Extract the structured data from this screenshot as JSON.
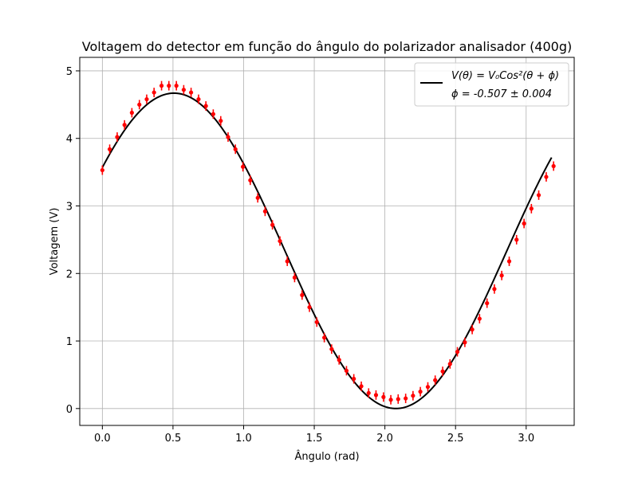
{
  "chart_data": {
    "type": "scatter",
    "title": "Voltagem do detector em função do ângulo do polarizador analisador (400g)",
    "xlabel": "Ângulo (rad)",
    "ylabel": "Voltagem (V)",
    "xlim": [
      -0.16,
      3.34
    ],
    "ylim": [
      -0.25,
      5.2
    ],
    "xticks": [
      0.0,
      0.5,
      1.0,
      1.5,
      2.0,
      2.5,
      3.0
    ],
    "xtick_labels": [
      "0.0",
      "0.5",
      "1.0",
      "1.5",
      "2.0",
      "2.5",
      "3.0"
    ],
    "yticks": [
      0,
      1,
      2,
      3,
      4,
      5
    ],
    "ytick_labels": [
      "0",
      "1",
      "2",
      "3",
      "4",
      "5"
    ],
    "grid": true,
    "legend_position": "top-right",
    "legend": {
      "fit_label": "V(θ) = V₀Cos²(θ + ϕ)",
      "phi_label": "ϕ = -0.507 ± 0.004"
    },
    "series": [
      {
        "type": "errorbar",
        "color": "#ff0000",
        "x": [
          0.0,
          0.052,
          0.105,
          0.157,
          0.209,
          0.262,
          0.314,
          0.366,
          0.419,
          0.471,
          0.524,
          0.576,
          0.628,
          0.681,
          0.733,
          0.785,
          0.838,
          0.89,
          0.942,
          0.995,
          1.047,
          1.1,
          1.152,
          1.204,
          1.257,
          1.309,
          1.361,
          1.414,
          1.466,
          1.518,
          1.571,
          1.623,
          1.676,
          1.728,
          1.78,
          1.833,
          1.885,
          1.937,
          1.99,
          2.042,
          2.094,
          2.147,
          2.199,
          2.251,
          2.304,
          2.356,
          2.409,
          2.461,
          2.513,
          2.566,
          2.618,
          2.67,
          2.723,
          2.775,
          2.827,
          2.88,
          2.932,
          2.985,
          3.037,
          3.089,
          3.142,
          3.194
        ],
        "y": [
          3.53,
          3.84,
          4.02,
          4.2,
          4.38,
          4.5,
          4.58,
          4.68,
          4.78,
          4.78,
          4.78,
          4.72,
          4.68,
          4.58,
          4.48,
          4.36,
          4.26,
          4.02,
          3.84,
          3.58,
          3.38,
          3.12,
          2.92,
          2.72,
          2.48,
          2.18,
          1.94,
          1.68,
          1.5,
          1.28,
          1.05,
          0.88,
          0.72,
          0.56,
          0.44,
          0.33,
          0.23,
          0.2,
          0.17,
          0.13,
          0.14,
          0.15,
          0.19,
          0.25,
          0.32,
          0.42,
          0.55,
          0.66,
          0.84,
          0.98,
          1.17,
          1.33,
          1.56,
          1.77,
          1.97,
          2.18,
          2.5,
          2.74,
          2.96,
          3.16,
          3.43,
          3.59
        ],
        "yerr": 0.07
      },
      {
        "type": "line",
        "color": "#000000",
        "function": "V0*cos^2(x - 0.507)",
        "V0": 4.67,
        "phase": -0.507,
        "x_range": [
          0.0,
          3.18
        ]
      }
    ]
  }
}
